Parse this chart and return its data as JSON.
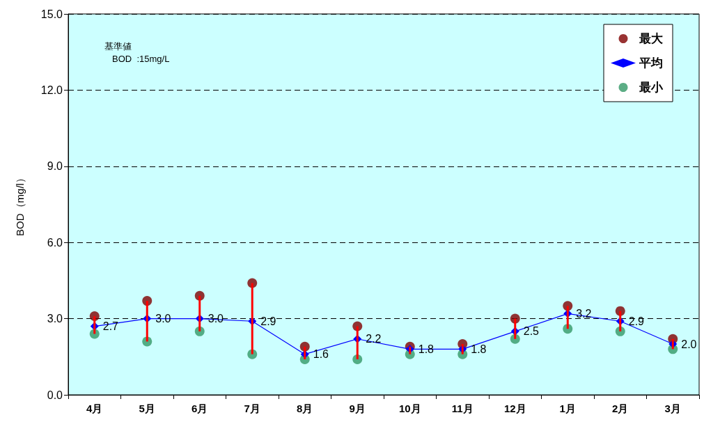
{
  "chart_data": {
    "type": "line",
    "ylabel": "BOD（mg/l）",
    "categories": [
      "4月",
      "5月",
      "6月",
      "7月",
      "8月",
      "9月",
      "10月",
      "11月",
      "12月",
      "1月",
      "2月",
      "3月"
    ],
    "series": [
      {
        "type": "bar",
        "color": "#ff0000",
        "base": [
          2.4,
          2.1,
          2.5,
          1.6,
          1.4,
          1.4,
          1.6,
          1.6,
          2.2,
          2.6,
          2.5,
          1.8
        ],
        "values": [
          0.7,
          1.6,
          1.4,
          2.8,
          0.5,
          1.3,
          0.3,
          0.4,
          0.8,
          0.9,
          0.8,
          0.4
        ]
      },
      {
        "name": "最大",
        "type": "scatter",
        "marker": "circle",
        "color": "#800000",
        "values": [
          3.1,
          3.7,
          3.9,
          4.4,
          1.9,
          2.7,
          1.9,
          2.0,
          3.0,
          3.5,
          3.3,
          2.2
        ]
      },
      {
        "name": "平均",
        "marker": "diamond",
        "color": "#0000ff",
        "values": [
          2.7,
          3.0,
          3.0,
          2.9,
          1.6,
          2.2,
          1.8,
          1.8,
          2.5,
          3.2,
          2.9,
          2.0
        ],
        "value_labels": [
          "2.7",
          "3.0",
          "3.0",
          "2.9",
          "1.6",
          "2.2",
          "1.8",
          "1.8",
          "2.5",
          "3.2",
          "2.9",
          "2.0"
        ]
      },
      {
        "name": "最小",
        "type": "scatter",
        "marker": "circle",
        "color": "#339966",
        "values": [
          2.4,
          2.1,
          2.5,
          1.6,
          1.4,
          1.4,
          1.6,
          1.6,
          2.2,
          2.6,
          2.5,
          1.8
        ]
      }
    ],
    "ylim": [
      0,
      15
    ],
    "yticks": [
      {
        "value": 0,
        "label": "0.0"
      },
      {
        "value": 3,
        "label": "3.0"
      },
      {
        "value": 6,
        "label": "6.0"
      },
      {
        "value": 9,
        "label": "9.0"
      },
      {
        "value": 12,
        "label": "12.0"
      },
      {
        "value": 15,
        "label": "15.0"
      }
    ],
    "grid": "y",
    "legend": "top right",
    "annotations": [
      "基準値",
      "BOD  :15mg/L"
    ]
  }
}
